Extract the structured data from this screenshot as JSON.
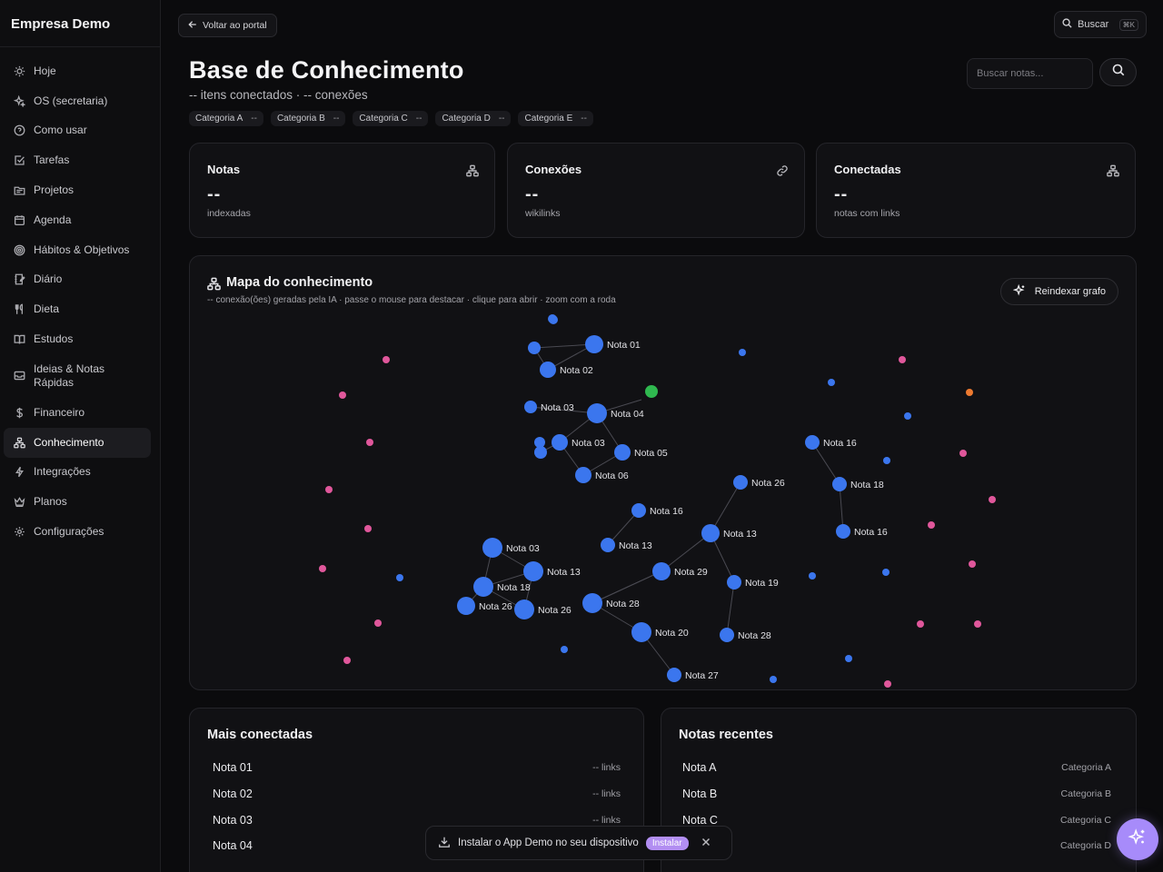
{
  "app": {
    "brand": "Empresa Demo"
  },
  "sidebar": {
    "items": [
      {
        "label": "Hoje",
        "icon": "sun-icon"
      },
      {
        "label": "OS (secretaria)",
        "icon": "sparkle-icon"
      },
      {
        "label": "Como usar",
        "icon": "help-circle-icon"
      },
      {
        "label": "Tarefas",
        "icon": "checkbox-icon"
      },
      {
        "label": "Projetos",
        "icon": "folder-icon"
      },
      {
        "label": "Agenda",
        "icon": "calendar-icon"
      },
      {
        "label": "Hábitos & Objetivos",
        "icon": "target-icon"
      },
      {
        "label": "Diário",
        "icon": "journal-icon"
      },
      {
        "label": "Dieta",
        "icon": "utensils-icon"
      },
      {
        "label": "Estudos",
        "icon": "book-icon"
      },
      {
        "label": "Ideias & Notas Rápidas",
        "icon": "inbox-icon"
      },
      {
        "label": "Financeiro",
        "icon": "dollar-icon"
      },
      {
        "label": "Conhecimento",
        "icon": "network-icon",
        "active": true
      },
      {
        "label": "Integrações",
        "icon": "plug-icon"
      },
      {
        "label": "Planos",
        "icon": "crown-icon"
      },
      {
        "label": "Configurações",
        "icon": "gear-icon"
      }
    ]
  },
  "header": {
    "back_label": "Voltar ao portal",
    "search_label": "Buscar",
    "search_shortcut": "⌘K",
    "title": "Base de Conhecimento",
    "subtitle": "-- itens conectados · -- conexões",
    "notes_search_placeholder": "Buscar notas...",
    "categories": [
      {
        "label": "Categoria A",
        "count": "--"
      },
      {
        "label": "Categoria B",
        "count": "--"
      },
      {
        "label": "Categoria C",
        "count": "--"
      },
      {
        "label": "Categoria D",
        "count": "--"
      },
      {
        "label": "Categoria E",
        "count": "--"
      }
    ]
  },
  "stats": [
    {
      "title": "Notas",
      "value": "--",
      "sub": "indexadas",
      "icon": "network-icon"
    },
    {
      "title": "Conexões",
      "value": "--",
      "sub": "wikilinks",
      "icon": "link-icon"
    },
    {
      "title": "Conectadas",
      "value": "--",
      "sub": "notas com links",
      "icon": "network-icon"
    }
  ],
  "map": {
    "title": "Mapa do conhecimento",
    "subtitle": "-- conexão(ões) geradas pela IA · passe o mouse para destacar · clique para abrir · zoom com a roda",
    "reindex_label": "Reindexar grafo",
    "colors": {
      "note": "#3b76ee",
      "pink": "#e0579b",
      "green": "#2fb84f",
      "orange": "#ee7a30"
    },
    "nodes": [
      {
        "label": "Nota 01"
      },
      {
        "label": "Nota 02"
      },
      {
        "label": "Nota 03"
      },
      {
        "label": "Nota 04"
      },
      {
        "label": "Nota 03"
      },
      {
        "label": "Nota 05"
      },
      {
        "label": "Nota 06"
      },
      {
        "label": "Nota 16"
      },
      {
        "label": "Nota 18"
      },
      {
        "label": "Nota 26"
      },
      {
        "label": "Nota 16"
      },
      {
        "label": "Nota 16"
      },
      {
        "label": "Nota 13"
      },
      {
        "label": "Nota 13"
      },
      {
        "label": "Nota 03"
      },
      {
        "label": "Nota 13"
      },
      {
        "label": "Nota 29"
      },
      {
        "label": "Nota 19"
      },
      {
        "label": "Nota 18"
      },
      {
        "label": "Nota 28"
      },
      {
        "label": "Nota 26"
      },
      {
        "label": "Nota 26"
      },
      {
        "label": "Nota 20"
      },
      {
        "label": "Nota 28"
      },
      {
        "label": "Nota 27"
      }
    ]
  },
  "most_connected": {
    "title": "Mais conectadas",
    "rows": [
      {
        "name": "Nota 01",
        "meta": "-- links"
      },
      {
        "name": "Nota 02",
        "meta": "-- links"
      },
      {
        "name": "Nota 03",
        "meta": "-- links"
      },
      {
        "name": "Nota 04",
        "meta": ""
      }
    ]
  },
  "recent": {
    "title": "Notas recentes",
    "rows": [
      {
        "name": "Nota A",
        "meta": "Categoria A"
      },
      {
        "name": "Nota B",
        "meta": "Categoria B"
      },
      {
        "name": "Nota C",
        "meta": "Categoria C"
      },
      {
        "name": "",
        "meta": "Categoria D"
      }
    ]
  },
  "toast": {
    "text": "Instalar o App Demo no seu dispositivo",
    "install_label": "Instalar"
  }
}
